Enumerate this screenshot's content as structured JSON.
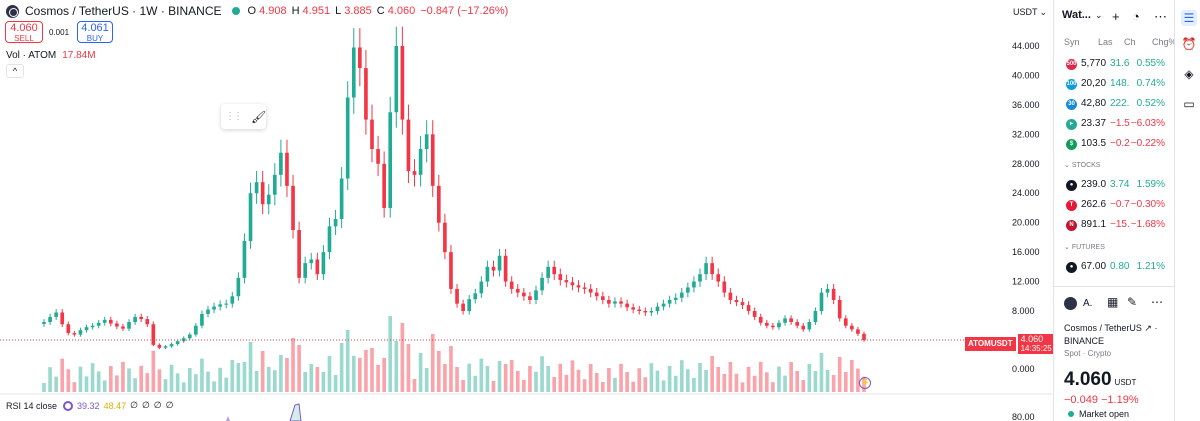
{
  "header": {
    "symbol_title": "Cosmos / TetherUS · 1W · BINANCE",
    "ohlc": [
      {
        "label": "O",
        "value": "4.908"
      },
      {
        "label": "H",
        "value": "4.951"
      },
      {
        "label": "L",
        "value": "3.885"
      },
      {
        "label": "C",
        "value": "4.060"
      }
    ],
    "change": "−0.847 (−17.26%)",
    "currency": "USDT"
  },
  "trade": {
    "sell_price": "4.060",
    "sell_label": "SELL",
    "spread": "0.001",
    "buy_price": "4.061",
    "buy_label": "BUY"
  },
  "volume": {
    "label": "Vol · ATOM",
    "value": "17.84M"
  },
  "current_price": {
    "symbol": "ATOMUSDT",
    "price": "4.060",
    "countdown": "14:35:25"
  },
  "rsi": {
    "label": "RSI 14 close",
    "value1": "39.32",
    "value2": "48.47",
    "zeros": [
      "∅",
      "∅",
      "∅",
      "∅"
    ]
  },
  "price_axis": {
    "ticks": [
      "44.000",
      "40.000",
      "36.000",
      "32.000",
      "28.000",
      "24.000",
      "20.000",
      "16.000",
      "12.000",
      "8.000",
      "0.000"
    ],
    "rsi_tick": "80.00"
  },
  "chart_data": {
    "type": "candlestick",
    "title": "Cosmos / TetherUS · 1W · BINANCE",
    "y_ticks": [
      0,
      8,
      12,
      16,
      20,
      24,
      28,
      32,
      36,
      40,
      44
    ],
    "close_series_approx": [
      6.5,
      7.2,
      7.8,
      6.2,
      5.0,
      4.8,
      5.4,
      5.8,
      6.0,
      6.4,
      6.8,
      6.3,
      5.9,
      5.6,
      6.5,
      7.2,
      6.9,
      6.2,
      3.4,
      3.0,
      3.2,
      3.5,
      3.9,
      4.3,
      4.8,
      6.0,
      7.6,
      8.2,
      8.6,
      8.9,
      9.0,
      10.0,
      12.5,
      17.5,
      24.0,
      25.5,
      22.5,
      23.8,
      26.5,
      29.5,
      25.0,
      19.0,
      12.5,
      14.5,
      15.0,
      13.0,
      16.0,
      19.5,
      20.5,
      26.0,
      37.0,
      43.8,
      41.0,
      34.0,
      30.0,
      28.0,
      22.0,
      35.0,
      44.0,
      34.0,
      27.0,
      26.5,
      30.0,
      32.0,
      25.0,
      20.0,
      16.0,
      11.0,
      9.0,
      8.0,
      9.6,
      10.4,
      12.0,
      14.0,
      13.5,
      15.5,
      12.0,
      11.0,
      10.5,
      10.0,
      9.5,
      10.8,
      12.5,
      14.0,
      13.0,
      12.2,
      11.9,
      11.5,
      11.2,
      11.0,
      10.5,
      10.0,
      9.5,
      9.0,
      9.3,
      9.0,
      8.5,
      8.2,
      8.0,
      7.8,
      8.0,
      8.6,
      9.0,
      9.5,
      9.8,
      10.5,
      11.2,
      12.0,
      13.0,
      14.5,
      13.0,
      12.0,
      10.5,
      9.5,
      9.2,
      8.8,
      8.0,
      7.2,
      6.4,
      6.0,
      5.8,
      6.4,
      7.0,
      6.5,
      6.0,
      5.5,
      6.5,
      8.0,
      10.5,
      11.0,
      9.5,
      7.0,
      6.0,
      5.5,
      4.9,
      4.06
    ]
  },
  "watchlist": {
    "title": "Wat...",
    "columns": [
      "Syn",
      "Las",
      "Ch",
      "Chg%"
    ],
    "rows": [
      {
        "icon": "500",
        "color": "#e0284a",
        "last": "5,770",
        "chg": "31.6",
        "pct": "0.55%",
        "dir": "up"
      },
      {
        "icon": "100",
        "color": "#0e9ddb",
        "last": "20,20",
        "chg": "148.",
        "pct": "0.74%",
        "dir": "up"
      },
      {
        "icon": "30",
        "color": "#1a8ad4",
        "last": "42,80",
        "chg": "222.",
        "pct": "0.52%",
        "dir": "up"
      },
      {
        "icon": "▸",
        "color": "#22ab94",
        "last": "23.37",
        "chg": "−1.5",
        "pct": "−6.03%",
        "dir": "dn"
      },
      {
        "icon": "$",
        "color": "#129b5b",
        "last": "103.5",
        "chg": "−0.2",
        "pct": "−0.22%",
        "dir": "dn"
      }
    ],
    "stocks_label": "STOCKS",
    "stocks": [
      {
        "icon": "●",
        "color": "#131722",
        "last": "239.0",
        "chg": "3.74",
        "pct": "1.59%",
        "dir": "up"
      },
      {
        "icon": "T",
        "color": "#e31937",
        "last": "262.6",
        "chg": "−0.7",
        "pct": "−0.30%",
        "dir": "dn"
      },
      {
        "icon": "N",
        "color": "#c0152f",
        "last": "891.1",
        "chg": "−15.",
        "pct": "−1.68%",
        "dir": "dn"
      }
    ],
    "futures_label": "FUTURES",
    "futures": [
      {
        "icon": "●",
        "color": "#131722",
        "last": "67.00",
        "chg": "0.80",
        "pct": "1.21%",
        "dir": "up"
      }
    ]
  },
  "details": {
    "short": "A.",
    "name": "Cosmos / TetherUS",
    "exchange": "BINANCE",
    "type": "Spot · Crypto",
    "price": "4.060",
    "currency": "USDT",
    "change": "−0.049  −1.19%",
    "market_status": "Market open"
  }
}
